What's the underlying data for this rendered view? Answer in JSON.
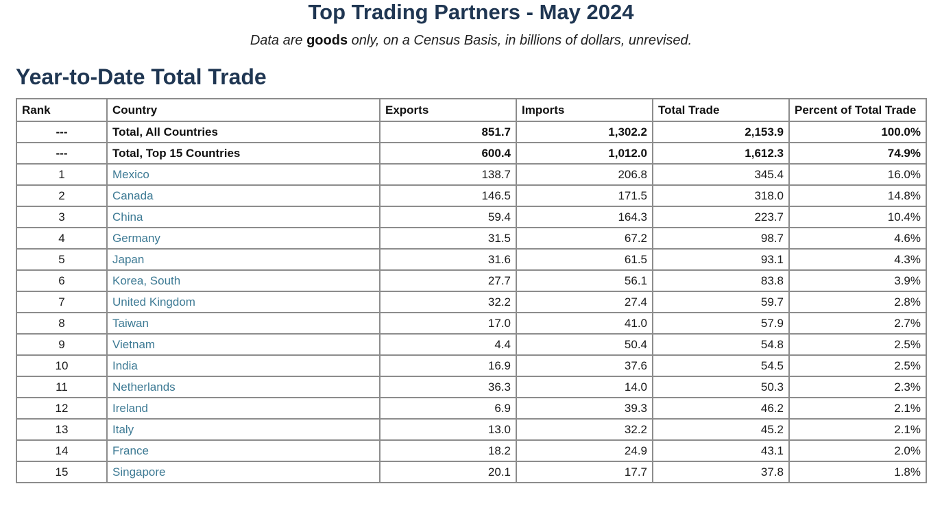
{
  "page": {
    "title": "Top Trading Partners - May 2024",
    "subtitle_before": "Data are ",
    "subtitle_bold": "goods",
    "subtitle_after": " only, on a Census Basis, in billions of dollars, unrevised.",
    "section_title": "Year-to-Date Total Trade"
  },
  "colors": {
    "heading": "#1f3652",
    "link": "#3d7a94",
    "border": "#8c8c8c"
  },
  "table": {
    "headers": [
      "Rank",
      "Country",
      "Exports",
      "Imports",
      "Total Trade",
      "Percent of Total Trade"
    ],
    "total_rows": [
      {
        "rank": "---",
        "country": "Total, All Countries",
        "exports": "851.7",
        "imports": "1,302.2",
        "total": "2,153.9",
        "percent": "100.0%"
      },
      {
        "rank": "---",
        "country": "Total, Top 15 Countries",
        "exports": "600.4",
        "imports": "1,012.0",
        "total": "1,612.3",
        "percent": "74.9%"
      }
    ],
    "rows": [
      {
        "rank": "1",
        "country": "Mexico",
        "exports": "138.7",
        "imports": "206.8",
        "total": "345.4",
        "percent": "16.0%"
      },
      {
        "rank": "2",
        "country": "Canada",
        "exports": "146.5",
        "imports": "171.5",
        "total": "318.0",
        "percent": "14.8%"
      },
      {
        "rank": "3",
        "country": "China",
        "exports": "59.4",
        "imports": "164.3",
        "total": "223.7",
        "percent": "10.4%"
      },
      {
        "rank": "4",
        "country": "Germany",
        "exports": "31.5",
        "imports": "67.2",
        "total": "98.7",
        "percent": "4.6%"
      },
      {
        "rank": "5",
        "country": "Japan",
        "exports": "31.6",
        "imports": "61.5",
        "total": "93.1",
        "percent": "4.3%"
      },
      {
        "rank": "6",
        "country": "Korea, South",
        "exports": "27.7",
        "imports": "56.1",
        "total": "83.8",
        "percent": "3.9%"
      },
      {
        "rank": "7",
        "country": "United Kingdom",
        "exports": "32.2",
        "imports": "27.4",
        "total": "59.7",
        "percent": "2.8%"
      },
      {
        "rank": "8",
        "country": "Taiwan",
        "exports": "17.0",
        "imports": "41.0",
        "total": "57.9",
        "percent": "2.7%"
      },
      {
        "rank": "9",
        "country": "Vietnam",
        "exports": "4.4",
        "imports": "50.4",
        "total": "54.8",
        "percent": "2.5%"
      },
      {
        "rank": "10",
        "country": "India",
        "exports": "16.9",
        "imports": "37.6",
        "total": "54.5",
        "percent": "2.5%"
      },
      {
        "rank": "11",
        "country": "Netherlands",
        "exports": "36.3",
        "imports": "14.0",
        "total": "50.3",
        "percent": "2.3%"
      },
      {
        "rank": "12",
        "country": "Ireland",
        "exports": "6.9",
        "imports": "39.3",
        "total": "46.2",
        "percent": "2.1%"
      },
      {
        "rank": "13",
        "country": "Italy",
        "exports": "13.0",
        "imports": "32.2",
        "total": "45.2",
        "percent": "2.1%"
      },
      {
        "rank": "14",
        "country": "France",
        "exports": "18.2",
        "imports": "24.9",
        "total": "43.1",
        "percent": "2.0%"
      },
      {
        "rank": "15",
        "country": "Singapore",
        "exports": "20.1",
        "imports": "17.7",
        "total": "37.8",
        "percent": "1.8%"
      }
    ]
  }
}
